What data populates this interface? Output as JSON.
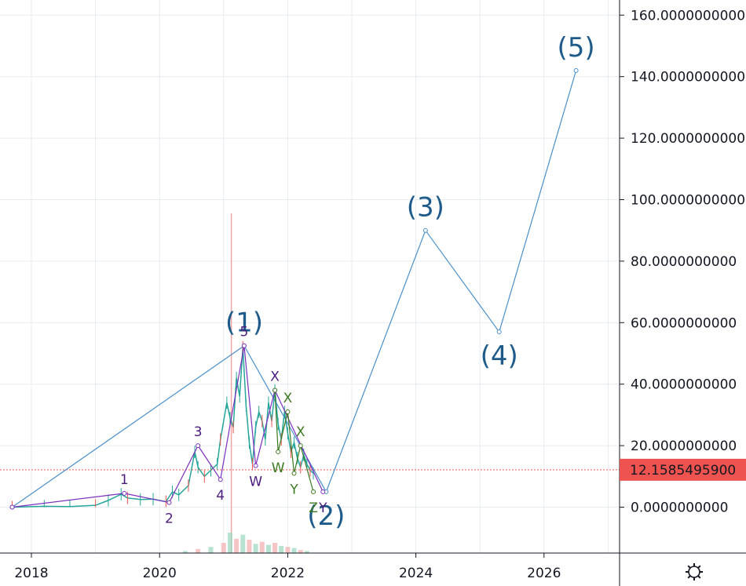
{
  "chart_data": {
    "type": "line",
    "x_axis": {
      "ticks": [
        "2018",
        "2020",
        "2022",
        "2024",
        "2026"
      ]
    },
    "y_axis": {
      "ticks": [
        "0.0000000000",
        "20.0000000000",
        "40.0000000000",
        "60.0000000000",
        "80.0000000000",
        "100.0000000000",
        "120.0000000000",
        "140.0000000000",
        "160.0000000000"
      ],
      "ylim": [
        -20,
        165
      ]
    },
    "current_price": {
      "label": "12.1585495900",
      "value": 12.16,
      "color": "#ef5350"
    },
    "price": {
      "x": [
        2017.7,
        2018.2,
        2018.6,
        2019.0,
        2019.2,
        2019.4,
        2019.5,
        2019.7,
        2019.9,
        2020.1,
        2020.2,
        2020.3,
        2020.45,
        2020.55,
        2020.6,
        2020.7,
        2020.8,
        2020.9,
        2020.95,
        2021.05,
        2021.1,
        2021.15,
        2021.2,
        2021.25,
        2021.3,
        2021.35,
        2021.4,
        2021.45,
        2021.5,
        2021.55,
        2021.6,
        2021.65,
        2021.7,
        2021.75,
        2021.8,
        2021.85,
        2021.9,
        2021.95,
        2022.0,
        2022.05,
        2022.1,
        2022.15,
        2022.2,
        2022.25,
        2022.3,
        2022.35,
        2022.4
      ],
      "y": [
        0,
        0.3,
        0.2,
        0.6,
        2.2,
        4.2,
        3.0,
        2.5,
        2.6,
        1.8,
        5.0,
        4.0,
        7.0,
        18.0,
        13.0,
        10.0,
        12.0,
        14.0,
        22.0,
        34.0,
        29.0,
        26.0,
        42.0,
        36.0,
        52.0,
        33.0,
        21.0,
        14.0,
        26.0,
        31.0,
        28.0,
        22.0,
        34.0,
        28.0,
        38.0,
        27.0,
        22.0,
        31.0,
        24.0,
        18.0,
        21.0,
        16.0,
        13.0,
        17.0,
        14.0,
        12.0,
        11.0
      ],
      "color": "#26a69a"
    },
    "volume": {
      "x": [
        2020.4,
        2020.6,
        2020.8,
        2021.0,
        2021.1,
        2021.2,
        2021.3,
        2021.4,
        2021.5,
        2021.6,
        2021.7,
        2021.8,
        2021.9,
        2022.0,
        2022.1,
        2022.2,
        2022.3
      ],
      "values": [
        2,
        4,
        6,
        10,
        20,
        14,
        18,
        13,
        9,
        11,
        8,
        10,
        7,
        6,
        5,
        3,
        2
      ]
    },
    "volume_spike_year": 2021.12,
    "projection": {
      "color": "#4a8fc9",
      "points": [
        {
          "x": 2017.7,
          "y": 0,
          "label": ""
        },
        {
          "x": 2021.32,
          "y": 52.5,
          "label": "(1)"
        },
        {
          "x": 2022.6,
          "y": 5,
          "label": "(2)"
        },
        {
          "x": 2024.15,
          "y": 90,
          "label": "(3)"
        },
        {
          "x": 2025.3,
          "y": 57,
          "label": "(4)"
        },
        {
          "x": 2026.5,
          "y": 142,
          "label": "(5)"
        }
      ]
    },
    "subwaves": {
      "color": "#7b2fbe",
      "points": [
        {
          "x": 2017.7,
          "y": 0,
          "label": ""
        },
        {
          "x": 2019.45,
          "y": 4.5,
          "label": "1"
        },
        {
          "x": 2020.15,
          "y": 1.5,
          "label": "2"
        },
        {
          "x": 2020.6,
          "y": 20,
          "label": "3"
        },
        {
          "x": 2020.95,
          "y": 9,
          "label": "4"
        },
        {
          "x": 2021.32,
          "y": 52.5,
          "label": "5"
        },
        {
          "x": 2021.5,
          "y": 13.5,
          "label": "W"
        },
        {
          "x": 2021.8,
          "y": 38,
          "label": "X"
        },
        {
          "x": 2022.55,
          "y": 5,
          "label": "Y"
        }
      ]
    },
    "green_subwaves": {
      "color": "#3c7a1f",
      "points": [
        {
          "x": 2021.8,
          "y": 38,
          "label": ""
        },
        {
          "x": 2021.85,
          "y": 18,
          "label": "W"
        },
        {
          "x": 2022.0,
          "y": 31,
          "label": "X"
        },
        {
          "x": 2022.1,
          "y": 11,
          "label": "Y"
        },
        {
          "x": 2022.2,
          "y": 20,
          "label": "X"
        },
        {
          "x": 2022.4,
          "y": 5,
          "label": "Z"
        }
      ]
    }
  },
  "toolbar": {
    "settings_icon": "settings-gear-icon"
  }
}
